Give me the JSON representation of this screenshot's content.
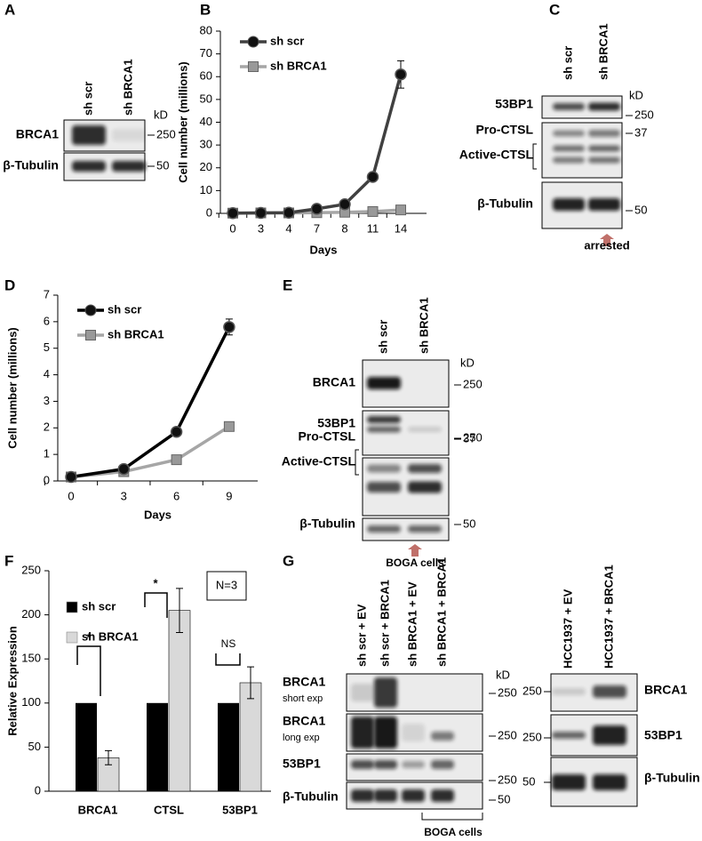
{
  "panel_letters": [
    "A",
    "B",
    "C",
    "D",
    "E",
    "F",
    "G"
  ],
  "chart_data": [
    {
      "type": "line",
      "xlabel": "Days",
      "ylabel": "Cell number (millions)",
      "categories": [
        "0",
        "3",
        "4",
        "7",
        "8",
        "11",
        "14"
      ],
      "series": [
        {
          "name": "sh scr",
          "color": "#404040",
          "marker": "circle",
          "values": [
            0.1,
            0.2,
            0.3,
            2,
            4,
            16,
            61
          ],
          "errors": [
            null,
            null,
            null,
            null,
            null,
            null,
            6
          ]
        },
        {
          "name": "sh BRCA1",
          "color": "#a6a6a6",
          "marker": "square",
          "values": [
            0.1,
            0.2,
            0.2,
            0.3,
            0.5,
            0.8,
            1.5
          ]
        }
      ],
      "ylim": [
        0,
        80
      ],
      "yticks": [
        0,
        10,
        20,
        30,
        40,
        50,
        60,
        70,
        80
      ]
    },
    {
      "type": "line",
      "xlabel": "Days",
      "ylabel": "Cell number  (millions)",
      "categories": [
        "0",
        "3",
        "6",
        "9"
      ],
      "series": [
        {
          "name": "sh scr",
          "color": "#000000",
          "marker": "circle",
          "values": [
            0.15,
            0.45,
            1.85,
            5.8
          ],
          "errors": [
            null,
            null,
            null,
            0.3
          ]
        },
        {
          "name": "sh BRCA1",
          "color": "#a6a6a6",
          "marker": "square",
          "values": [
            0.15,
            0.35,
            0.8,
            2.05
          ]
        }
      ],
      "ylim": [
        0,
        7
      ],
      "yticks": [
        0,
        1,
        2,
        3,
        4,
        5,
        6,
        7
      ]
    },
    {
      "type": "bar",
      "ylabel": "Relative Expression",
      "categories": [
        "BRCA1",
        "CTSL",
        "53BP1"
      ],
      "series": [
        {
          "name": "sh scr",
          "color": "#000000",
          "values": [
            100,
            100,
            100
          ]
        },
        {
          "name": "sh BRCA1",
          "color": "#d9d9d9",
          "values": [
            38,
            205,
            123
          ],
          "errors": [
            8,
            25,
            18
          ]
        }
      ],
      "annotations": [
        "*",
        "*",
        "NS",
        "N=3"
      ],
      "ylim": [
        0,
        250
      ],
      "yticks": [
        0,
        50,
        100,
        150,
        200,
        250
      ]
    }
  ],
  "blots": [
    {
      "lanes": [
        "sh scr",
        "sh BRCA1"
      ],
      "rows": [
        "BRCA1",
        "β-Tubulin"
      ],
      "unit": "kD",
      "markers": [
        250,
        50
      ]
    },
    {
      "lanes": [
        "sh scr",
        "sh BRCA1"
      ],
      "rows": [
        "53BP1",
        "Pro-CTSL",
        "Active-CTSL",
        "β-Tubulin"
      ],
      "unit": "kD",
      "markers": [
        250,
        37,
        50
      ],
      "note": "arrested"
    },
    {
      "lanes": [
        "sh scr",
        "sh BRCA1"
      ],
      "rows": [
        "BRCA1",
        "53BP1",
        "Pro-CTSL",
        "Active-CTSL",
        "β-Tubulin"
      ],
      "unit": "kD",
      "markers": [
        250,
        250,
        37,
        50
      ],
      "note": "BOGA cells"
    },
    {
      "lanes": [
        "sh scr + EV",
        "sh scr + BRCA1",
        "sh BRCA1 + EV",
        "sh BRCA1 + BRCA1"
      ],
      "rows": [
        "BRCA1",
        "BRCA1",
        "53BP1",
        "β-Tubulin"
      ],
      "sublabels": [
        "short exp",
        "long exp"
      ],
      "unit": "kD",
      "markers": [
        250,
        250,
        250,
        50
      ],
      "note": "BOGA cells"
    },
    {
      "lanes": [
        "HCC1937 + EV",
        "HCC1937 + BRCA1"
      ],
      "rows": [
        "BRCA1",
        "53BP1",
        "β-Tubulin"
      ],
      "markers": [
        250,
        250,
        50
      ]
    }
  ]
}
